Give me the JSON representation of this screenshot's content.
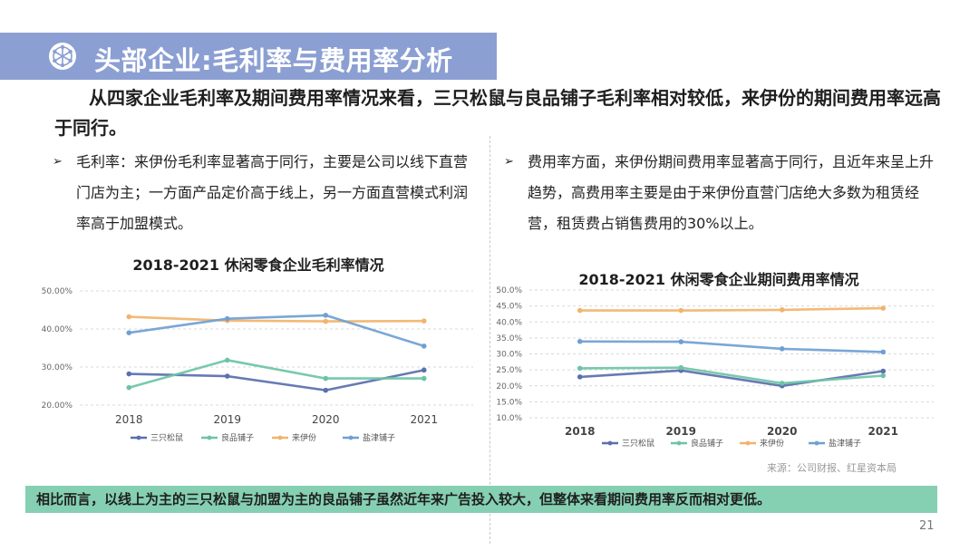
{
  "header": {
    "title": "头部企业:毛利率与费用率分析",
    "headline": "从四家企业毛利率及期间费用率情况来看，三只松鼠与良品铺子毛利率相对较低，来伊份的期间费用率远高于同行。"
  },
  "bullets": {
    "left": "毛利率：来伊份毛利率显著高于同行，主要是公司以线下直营门店为主；一方面产品定价高于线上，另一方面直营模式利润率高于加盟模式。",
    "right": "费用率方面，来伊份期间费用率显著高于同行，且近年来呈上升趋势，高费用率主要是由于来伊份直营门店绝大多数为租赁经营，租赁费占销售费用的30%以上。"
  },
  "chart_data": [
    {
      "type": "line",
      "title": "2018-2021 休闲零食企业毛利率情况",
      "categories": [
        "2018",
        "2019",
        "2020",
        "2021"
      ],
      "y_ticks": [
        "50.00%",
        "40.00%",
        "30.00%",
        "20.00%"
      ],
      "ylim": [
        20,
        50
      ],
      "grid": true,
      "legend": "bottom",
      "series": [
        {
          "name": "三只松鼠",
          "color": "#5b6fae",
          "values": [
            28.2,
            27.6,
            23.9,
            29.2
          ]
        },
        {
          "name": "良品铺子",
          "color": "#6cc4a6",
          "values": [
            24.6,
            31.8,
            27.0,
            27.0
          ]
        },
        {
          "name": "来伊份",
          "color": "#f1b46b",
          "values": [
            43.2,
            42.2,
            42.0,
            42.1
          ]
        },
        {
          "name": "盐津铺子",
          "color": "#6f9fd4",
          "values": [
            39.0,
            42.7,
            43.6,
            35.5
          ]
        }
      ]
    },
    {
      "type": "line",
      "title": "2018-2021 休闲零食企业期间费用率情况",
      "categories": [
        "2018",
        "2019",
        "2020",
        "2021"
      ],
      "y_ticks": [
        "50.0%",
        "45.0%",
        "40.0%",
        "35.0%",
        "30.0%",
        "25.0%",
        "20.0%",
        "15.0%",
        "10.0%"
      ],
      "ylim": [
        10,
        50
      ],
      "grid": true,
      "legend": "bottom",
      "series": [
        {
          "name": "三只松鼠",
          "color": "#5b6fae",
          "values": [
            22.8,
            24.8,
            20.0,
            24.6
          ]
        },
        {
          "name": "良品铺子",
          "color": "#6cc4a6",
          "values": [
            25.5,
            25.7,
            20.8,
            23.2
          ]
        },
        {
          "name": "来伊份",
          "color": "#f1b46b",
          "values": [
            43.6,
            43.6,
            43.8,
            44.3
          ]
        },
        {
          "name": "盐津铺子",
          "color": "#6f9fd4",
          "values": [
            33.9,
            33.8,
            31.6,
            30.6
          ]
        }
      ]
    }
  ],
  "footer": {
    "source": "来源：公司财报、红星资本局",
    "conclusion": "相比而言，以线上为主的三只松鼠与加盟为主的良品铺子虽然近年来广告投入较大，但整体来看期间费用率反而相对更低。",
    "page": "21"
  },
  "colors": {
    "banner": "#8b9fd3",
    "conclusion_bar": "#85d0b2"
  }
}
